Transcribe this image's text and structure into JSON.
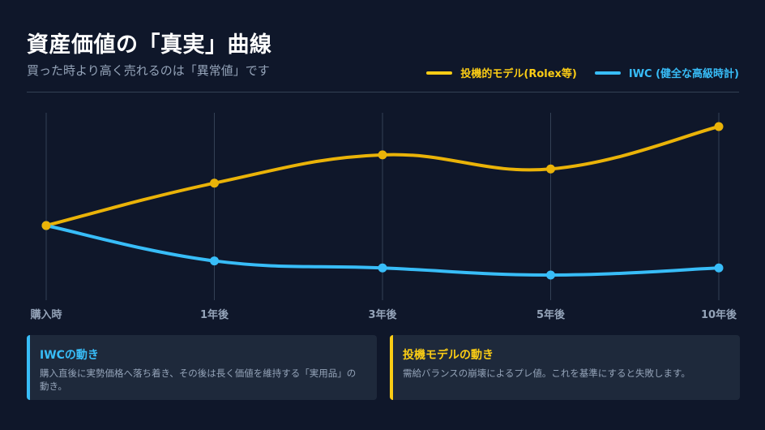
{
  "header": {
    "title": "資産価値の「真実」曲線",
    "subtitle": "買った時より高く売れるのは「異常値」です"
  },
  "legend": [
    {
      "label": "投機的モデル(Rolex等)",
      "color": "#facc15"
    },
    {
      "label": "IWC (健全な高級時計)",
      "color": "#38bdf8"
    }
  ],
  "colors": {
    "background": "#0f172a",
    "card": "#1e293b",
    "grid": "#334155",
    "speculative": "#eab308",
    "iwc": "#38bdf8",
    "muted_text": "#94a3b8"
  },
  "chart_data": {
    "type": "line",
    "title": "資産価値の「真実」曲線",
    "subtitle": "買った時より高く売れるのは「異常値」です",
    "categories": [
      "購入時",
      "1年後",
      "3年後",
      "5年後",
      "10年後"
    ],
    "series": [
      {
        "name": "投機的モデル(Rolex等)",
        "color": "#eab308",
        "values": [
          100,
          124,
          140,
          132,
          156
        ]
      },
      {
        "name": "IWC (健全な高級時計)",
        "color": "#38bdf8",
        "values": [
          100,
          80,
          76,
          72,
          76
        ]
      }
    ],
    "xlabel": "",
    "ylabel": "",
    "y_axis_visible": false,
    "grid": "vertical",
    "legend_position": "top-right",
    "smooth": true
  },
  "cards": [
    {
      "title": "IWCの動き",
      "body": "購入直後に実勢価格へ落ち着き、その後は長く価値を維持する「実用品」の動き。",
      "color": "#38bdf8"
    },
    {
      "title": "投機モデルの動き",
      "body": "需給バランスの崩壊によるプレ値。これを基準にすると失敗します。",
      "color": "#facc15"
    }
  ]
}
